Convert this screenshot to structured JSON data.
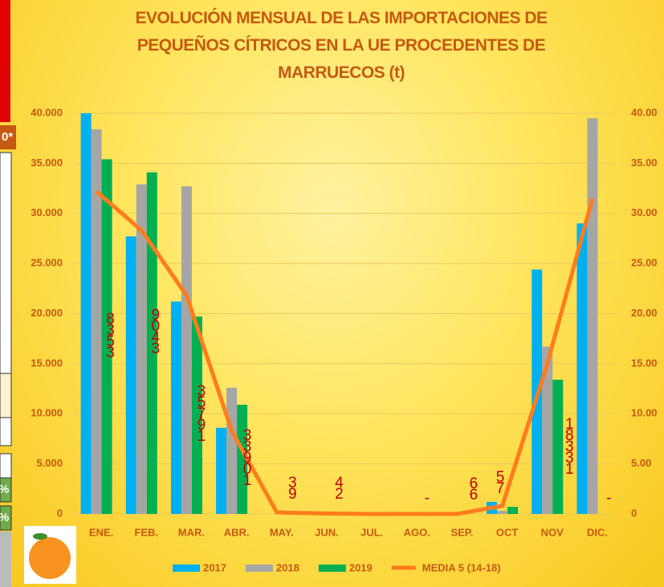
{
  "chart_data": {
    "type": "bar",
    "title": "EVOLUCIÓN MENSUAL DE LAS IMPORTACIONES DE\nPEQUEÑOS CÍTRICOS EN LA UE PROCEDENTES DE\nMARRUECOS (t)",
    "categories": [
      "ENE.",
      "FEB.",
      "MAR.",
      "ABR.",
      "MAY.",
      "JUN.",
      "JUL.",
      "AGO.",
      "SEP.",
      "OCT",
      "NOV",
      "DIC."
    ],
    "series": [
      {
        "name": "2017",
        "type": "bar",
        "color": "#00b0f0",
        "values": [
          40000,
          27700,
          21200,
          8600,
          0,
          0,
          0,
          0,
          0,
          1200,
          24400,
          29000
        ]
      },
      {
        "name": "2018",
        "type": "bar",
        "color": "#a6a6a6",
        "values": [
          38400,
          32900,
          32700,
          12600,
          0,
          0,
          0,
          0,
          0,
          300,
          16700,
          39500
        ]
      },
      {
        "name": "2019",
        "type": "bar",
        "color": "#00b050",
        "values": [
          35400,
          34100,
          19700,
          10900,
          0,
          0,
          0,
          0,
          0,
          700,
          13400,
          null
        ]
      },
      {
        "name": "MEDIA 5 (14-18)",
        "type": "line",
        "color": "#ff7c1c",
        "axis": "y2",
        "values": [
          32200,
          28300,
          21800,
          8300,
          150,
          50,
          0,
          0,
          0,
          800,
          15000,
          31500
        ]
      }
    ],
    "ylim": [
      0,
      40000
    ],
    "yticks": [
      {
        "value": 0,
        "label": "0"
      },
      {
        "value": 5000,
        "label": "5.000"
      },
      {
        "value": 10000,
        "label": "10.000"
      },
      {
        "value": 15000,
        "label": "15.000"
      },
      {
        "value": 20000,
        "label": "20.000"
      },
      {
        "value": 25000,
        "label": "25.000"
      },
      {
        "value": 30000,
        "label": "30.000"
      },
      {
        "value": 35000,
        "label": "35.000"
      },
      {
        "value": 40000,
        "label": "40.000"
      }
    ],
    "y2lim": [
      0,
      40000
    ],
    "y2ticks": [
      {
        "value": 0,
        "label": "0"
      },
      {
        "value": 5000,
        "label": "5.00"
      },
      {
        "value": 10000,
        "label": "10.00"
      },
      {
        "value": 15000,
        "label": "15.00"
      },
      {
        "value": 20000,
        "label": "20.00"
      },
      {
        "value": 25000,
        "label": "25.00"
      },
      {
        "value": 30000,
        "label": "30.00"
      },
      {
        "value": 35000,
        "label": "35.00"
      },
      {
        "value": 40000,
        "label": "40.00"
      }
    ],
    "grid": true,
    "annotations": [
      {
        "text": "8353",
        "category": "ENE."
      },
      {
        "text": "9043",
        "category": "FEB."
      },
      {
        "text": "35791",
        "category": "MAR."
      },
      {
        "text": "33901",
        "category": "ABR."
      },
      {
        "text": "39",
        "category": "MAY."
      },
      {
        "text": "42",
        "category": "JUN."
      },
      {
        "text": "-",
        "category": "AGO."
      },
      {
        "text": "66",
        "category": "SEP."
      },
      {
        "text": "57",
        "category": "OCT"
      },
      {
        "text": "18331",
        "category": "NOV"
      },
      {
        "text": "-",
        "category": "DIC."
      }
    ]
  },
  "left_edge_texts": [
    "0*",
    "%",
    "%"
  ]
}
